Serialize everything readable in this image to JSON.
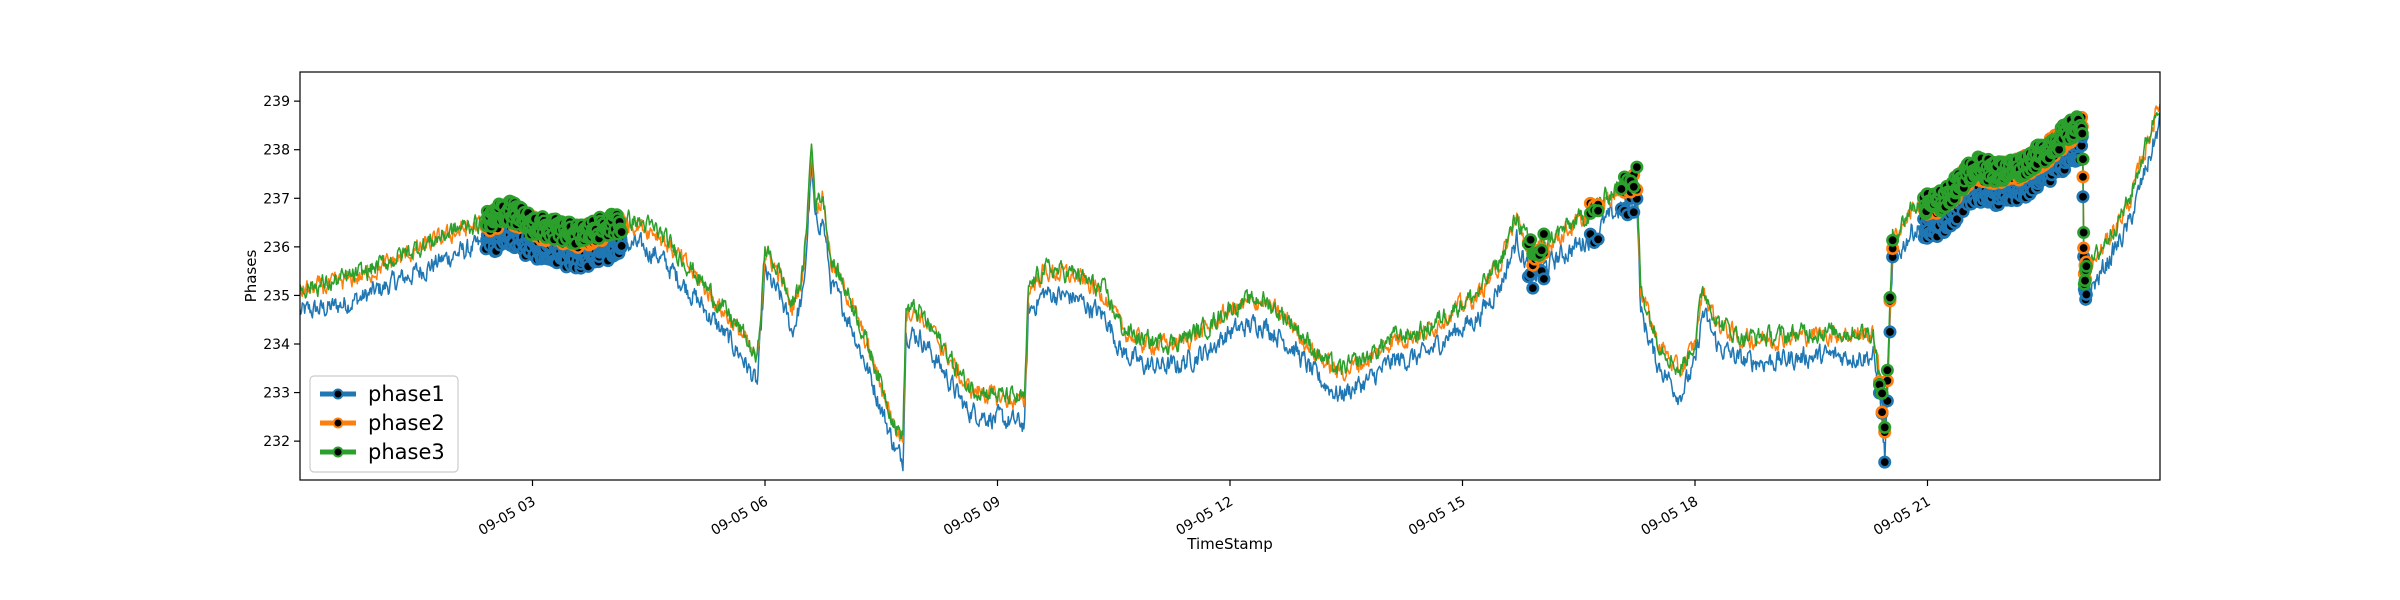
{
  "chart_data": {
    "type": "line",
    "title": "",
    "xlabel": "TimeStamp",
    "ylabel": "Phases",
    "x_unit": "hours",
    "xlim": [
      0,
      24
    ],
    "ylim": [
      231.2,
      239.6
    ],
    "x_ticks": [
      {
        "x": 3,
        "label": "09-05 03"
      },
      {
        "x": 6,
        "label": "09-05 06"
      },
      {
        "x": 9,
        "label": "09-05 09"
      },
      {
        "x": 12,
        "label": "09-05 12"
      },
      {
        "x": 15,
        "label": "09-05 15"
      },
      {
        "x": 18,
        "label": "09-05 18"
      },
      {
        "x": 21,
        "label": "09-05 21"
      }
    ],
    "y_ticks": [
      232,
      233,
      234,
      235,
      236,
      237,
      238,
      239
    ],
    "grid": false,
    "legend_position": "lower-left",
    "series": [
      {
        "name": "phase1",
        "color": "#1f77b4",
        "offset": -0.35,
        "noise": 0.22,
        "draw_order": 1,
        "points": [
          [
            0,
            235.0
          ],
          [
            0.4,
            235.1
          ],
          [
            0.8,
            235.3
          ],
          [
            1.2,
            235.6
          ],
          [
            1.6,
            235.9
          ],
          [
            2.0,
            236.2
          ],
          [
            2.4,
            236.4
          ],
          [
            2.7,
            236.6
          ],
          [
            3.0,
            236.3
          ],
          [
            3.3,
            236.2
          ],
          [
            3.6,
            236.1
          ],
          [
            4.0,
            236.3
          ],
          [
            4.3,
            236.4
          ],
          [
            4.6,
            236.2
          ],
          [
            5.0,
            235.5
          ],
          [
            5.4,
            234.7
          ],
          [
            5.7,
            234.1
          ],
          [
            5.9,
            233.5
          ],
          [
            6.0,
            235.8
          ],
          [
            6.2,
            235.3
          ],
          [
            6.35,
            234.6
          ],
          [
            6.5,
            235.4
          ],
          [
            6.6,
            238.0
          ],
          [
            6.65,
            236.8
          ],
          [
            6.75,
            236.9
          ],
          [
            6.85,
            235.6
          ],
          [
            7.1,
            234.8
          ],
          [
            7.4,
            233.5
          ],
          [
            7.7,
            232.1
          ],
          [
            7.78,
            232.0
          ],
          [
            7.82,
            234.6
          ],
          [
            8.0,
            234.5
          ],
          [
            8.3,
            233.8
          ],
          [
            8.6,
            233.0
          ],
          [
            9.0,
            232.8
          ],
          [
            9.35,
            232.7
          ],
          [
            9.4,
            235.0
          ],
          [
            9.6,
            235.4
          ],
          [
            10.0,
            235.3
          ],
          [
            10.4,
            234.9
          ],
          [
            10.6,
            234.2
          ],
          [
            10.9,
            233.9
          ],
          [
            11.3,
            233.9
          ],
          [
            11.7,
            234.2
          ],
          [
            12.0,
            234.6
          ],
          [
            12.4,
            234.8
          ],
          [
            12.8,
            234.3
          ],
          [
            13.1,
            233.7
          ],
          [
            13.4,
            233.3
          ],
          [
            13.8,
            233.6
          ],
          [
            14.1,
            234.0
          ],
          [
            14.5,
            234.1
          ],
          [
            14.8,
            234.5
          ],
          [
            15.2,
            234.9
          ],
          [
            15.5,
            235.6
          ],
          [
            15.7,
            236.5
          ],
          [
            15.9,
            235.7
          ],
          [
            16.2,
            236.1
          ],
          [
            16.6,
            236.5
          ],
          [
            16.8,
            236.8
          ],
          [
            17.0,
            237.1
          ],
          [
            17.25,
            237.3
          ],
          [
            17.3,
            235.0
          ],
          [
            17.5,
            234.0
          ],
          [
            17.8,
            233.3
          ],
          [
            18.0,
            233.9
          ],
          [
            18.1,
            235.0
          ],
          [
            18.3,
            234.3
          ],
          [
            18.6,
            234.0
          ],
          [
            19.0,
            234.0
          ],
          [
            19.5,
            234.1
          ],
          [
            20.0,
            234.1
          ],
          [
            20.3,
            234.1
          ],
          [
            20.4,
            233.0
          ],
          [
            20.45,
            232.0
          ],
          [
            20.55,
            236.0
          ],
          [
            20.8,
            236.7
          ],
          [
            21.2,
            236.8
          ],
          [
            21.6,
            237.5
          ],
          [
            21.9,
            237.4
          ],
          [
            22.2,
            237.5
          ],
          [
            22.5,
            237.8
          ],
          [
            22.8,
            238.2
          ],
          [
            23.0,
            238.4
          ],
          [
            23.02,
            235.3
          ],
          [
            23.2,
            235.7
          ],
          [
            23.6,
            236.8
          ],
          [
            24.0,
            238.9
          ]
        ]
      },
      {
        "name": "phase2",
        "color": "#ff7f0e",
        "offset": 0.1,
        "noise": 0.2,
        "draw_order": 2,
        "points": [
          [
            0,
            235.0
          ],
          [
            0.4,
            235.1
          ],
          [
            0.8,
            235.3
          ],
          [
            1.2,
            235.6
          ],
          [
            1.6,
            235.9
          ],
          [
            2.0,
            236.2
          ],
          [
            2.4,
            236.4
          ],
          [
            2.7,
            236.6
          ],
          [
            3.0,
            236.3
          ],
          [
            3.3,
            236.2
          ],
          [
            3.6,
            236.1
          ],
          [
            4.0,
            236.3
          ],
          [
            4.3,
            236.4
          ],
          [
            4.6,
            236.2
          ],
          [
            5.0,
            235.5
          ],
          [
            5.4,
            234.7
          ],
          [
            5.7,
            234.1
          ],
          [
            5.9,
            233.5
          ],
          [
            6.0,
            235.8
          ],
          [
            6.2,
            235.3
          ],
          [
            6.35,
            234.6
          ],
          [
            6.5,
            235.4
          ],
          [
            6.6,
            238.0
          ],
          [
            6.65,
            236.8
          ],
          [
            6.75,
            236.9
          ],
          [
            6.85,
            235.6
          ],
          [
            7.1,
            234.8
          ],
          [
            7.4,
            233.5
          ],
          [
            7.7,
            232.1
          ],
          [
            7.78,
            232.0
          ],
          [
            7.82,
            234.6
          ],
          [
            8.0,
            234.5
          ],
          [
            8.3,
            233.8
          ],
          [
            8.6,
            233.0
          ],
          [
            9.0,
            232.8
          ],
          [
            9.35,
            232.7
          ],
          [
            9.4,
            235.0
          ],
          [
            9.6,
            235.4
          ],
          [
            10.0,
            235.3
          ],
          [
            10.4,
            234.9
          ],
          [
            10.6,
            234.2
          ],
          [
            10.9,
            233.9
          ],
          [
            11.3,
            233.9
          ],
          [
            11.7,
            234.2
          ],
          [
            12.0,
            234.6
          ],
          [
            12.4,
            234.8
          ],
          [
            12.8,
            234.3
          ],
          [
            13.1,
            233.7
          ],
          [
            13.4,
            233.3
          ],
          [
            13.8,
            233.6
          ],
          [
            14.1,
            234.0
          ],
          [
            14.5,
            234.1
          ],
          [
            14.8,
            234.5
          ],
          [
            15.2,
            234.9
          ],
          [
            15.5,
            235.6
          ],
          [
            15.7,
            236.5
          ],
          [
            15.9,
            235.7
          ],
          [
            16.2,
            236.1
          ],
          [
            16.6,
            236.5
          ],
          [
            16.8,
            236.8
          ],
          [
            17.0,
            237.1
          ],
          [
            17.25,
            237.3
          ],
          [
            17.3,
            235.0
          ],
          [
            17.5,
            234.0
          ],
          [
            17.8,
            233.3
          ],
          [
            18.0,
            233.9
          ],
          [
            18.1,
            235.0
          ],
          [
            18.3,
            234.3
          ],
          [
            18.6,
            234.0
          ],
          [
            19.0,
            234.0
          ],
          [
            19.5,
            234.1
          ],
          [
            20.0,
            234.1
          ],
          [
            20.3,
            234.1
          ],
          [
            20.4,
            233.0
          ],
          [
            20.45,
            232.0
          ],
          [
            20.55,
            236.0
          ],
          [
            20.8,
            236.7
          ],
          [
            21.2,
            236.8
          ],
          [
            21.6,
            237.5
          ],
          [
            21.9,
            237.4
          ],
          [
            22.2,
            237.5
          ],
          [
            22.5,
            237.8
          ],
          [
            22.8,
            238.2
          ],
          [
            23.0,
            238.4
          ],
          [
            23.02,
            235.3
          ],
          [
            23.2,
            235.7
          ],
          [
            23.6,
            236.8
          ],
          [
            24.0,
            238.9
          ]
        ]
      },
      {
        "name": "phase3",
        "color": "#2ca02c",
        "offset": 0.15,
        "noise": 0.2,
        "draw_order": 3,
        "points": [
          [
            0,
            235.0
          ],
          [
            0.4,
            235.1
          ],
          [
            0.8,
            235.3
          ],
          [
            1.2,
            235.6
          ],
          [
            1.6,
            235.9
          ],
          [
            2.0,
            236.2
          ],
          [
            2.4,
            236.4
          ],
          [
            2.7,
            236.6
          ],
          [
            3.0,
            236.3
          ],
          [
            3.3,
            236.2
          ],
          [
            3.6,
            236.1
          ],
          [
            4.0,
            236.3
          ],
          [
            4.3,
            236.4
          ],
          [
            4.6,
            236.2
          ],
          [
            5.0,
            235.5
          ],
          [
            5.4,
            234.7
          ],
          [
            5.7,
            234.1
          ],
          [
            5.9,
            233.5
          ],
          [
            6.0,
            235.8
          ],
          [
            6.2,
            235.3
          ],
          [
            6.35,
            234.6
          ],
          [
            6.5,
            235.4
          ],
          [
            6.6,
            238.0
          ],
          [
            6.65,
            236.8
          ],
          [
            6.75,
            236.9
          ],
          [
            6.85,
            235.6
          ],
          [
            7.1,
            234.8
          ],
          [
            7.4,
            233.5
          ],
          [
            7.7,
            232.1
          ],
          [
            7.78,
            232.0
          ],
          [
            7.82,
            234.6
          ],
          [
            8.0,
            234.5
          ],
          [
            8.3,
            233.8
          ],
          [
            8.6,
            233.0
          ],
          [
            9.0,
            232.8
          ],
          [
            9.35,
            232.7
          ],
          [
            9.4,
            235.0
          ],
          [
            9.6,
            235.4
          ],
          [
            10.0,
            235.3
          ],
          [
            10.4,
            234.9
          ],
          [
            10.6,
            234.2
          ],
          [
            10.9,
            233.9
          ],
          [
            11.3,
            233.9
          ],
          [
            11.7,
            234.2
          ],
          [
            12.0,
            234.6
          ],
          [
            12.4,
            234.8
          ],
          [
            12.8,
            234.3
          ],
          [
            13.1,
            233.7
          ],
          [
            13.4,
            233.3
          ],
          [
            13.8,
            233.6
          ],
          [
            14.1,
            234.0
          ],
          [
            14.5,
            234.1
          ],
          [
            14.8,
            234.5
          ],
          [
            15.2,
            234.9
          ],
          [
            15.5,
            235.6
          ],
          [
            15.7,
            236.5
          ],
          [
            15.9,
            235.7
          ],
          [
            16.2,
            236.1
          ],
          [
            16.6,
            236.5
          ],
          [
            16.8,
            236.8
          ],
          [
            17.0,
            237.1
          ],
          [
            17.25,
            237.3
          ],
          [
            17.3,
            235.0
          ],
          [
            17.5,
            234.0
          ],
          [
            17.8,
            233.3
          ],
          [
            18.0,
            233.9
          ],
          [
            18.1,
            235.0
          ],
          [
            18.3,
            234.3
          ],
          [
            18.6,
            234.0
          ],
          [
            19.0,
            234.0
          ],
          [
            19.5,
            234.1
          ],
          [
            20.0,
            234.1
          ],
          [
            20.3,
            234.1
          ],
          [
            20.4,
            233.0
          ],
          [
            20.45,
            232.0
          ],
          [
            20.55,
            236.0
          ],
          [
            20.8,
            236.7
          ],
          [
            21.2,
            236.8
          ],
          [
            21.6,
            237.5
          ],
          [
            21.9,
            237.4
          ],
          [
            22.2,
            237.5
          ],
          [
            22.5,
            237.8
          ],
          [
            22.8,
            238.2
          ],
          [
            23.0,
            238.4
          ],
          [
            23.02,
            235.3
          ],
          [
            23.2,
            235.7
          ],
          [
            23.6,
            236.8
          ],
          [
            24.0,
            238.9
          ]
        ]
      }
    ],
    "highlight_marker_color": "#000000",
    "highlight_ranges": [
      {
        "x0": 2.4,
        "x1": 4.15,
        "count": 200
      },
      {
        "x0": 15.85,
        "x1": 16.05,
        "count": 8
      },
      {
        "x0": 16.65,
        "x1": 16.75,
        "count": 3
      },
      {
        "x0": 17.05,
        "x1": 17.25,
        "count": 6
      },
      {
        "x0": 20.38,
        "x1": 20.55,
        "count": 6
      },
      {
        "x0": 20.95,
        "x1": 23.05,
        "count": 240
      }
    ]
  }
}
